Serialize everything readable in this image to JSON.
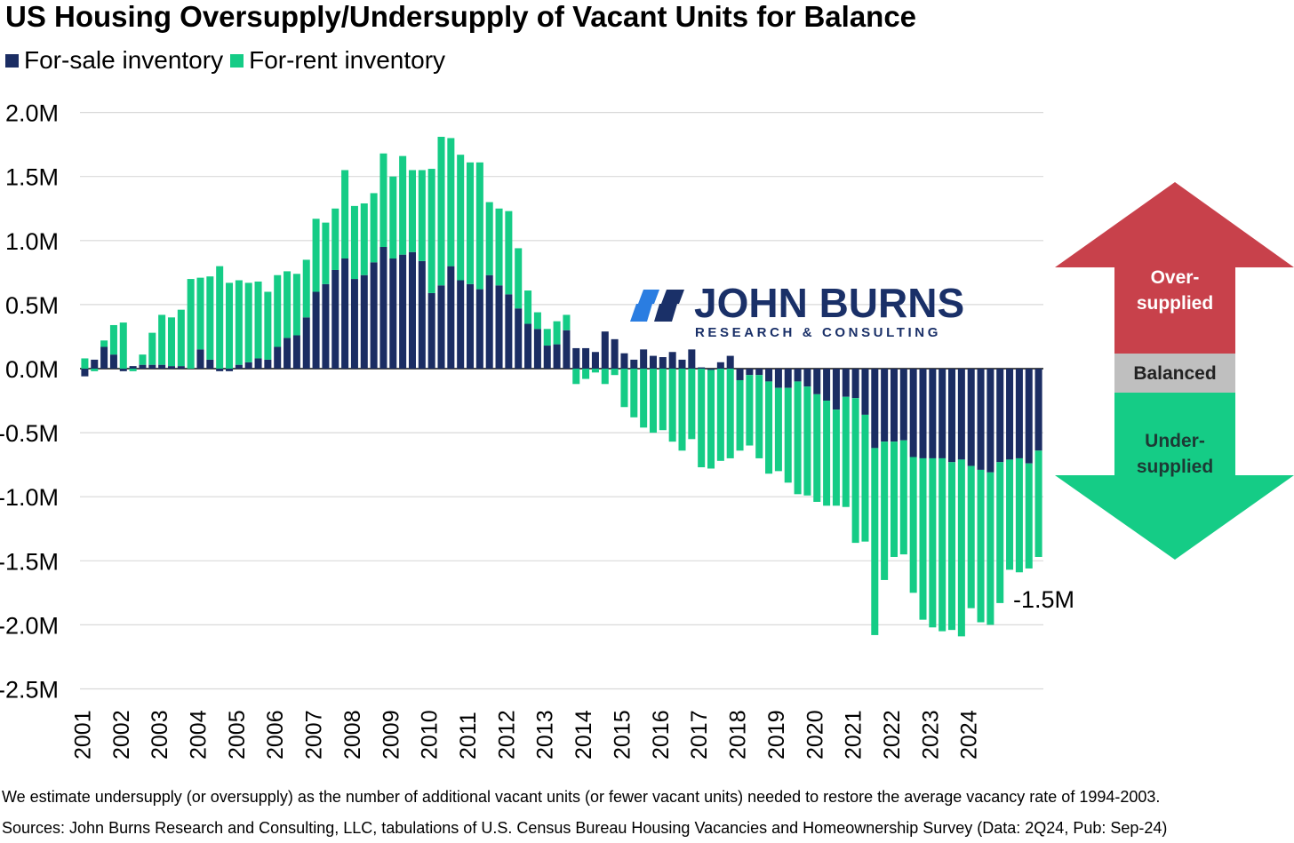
{
  "title": "US Housing Oversupply/Undersupply of Vacant Units for Balance",
  "legend": [
    {
      "label": "For-sale inventory",
      "color": "#1b2d63"
    },
    {
      "label": "For-rent inventory",
      "color": "#15cc86"
    }
  ],
  "logo": {
    "name": "JOHN BURNS",
    "subtitle": "RESEARCH & CONSULTING",
    "icon": "john-burns-logo-icon"
  },
  "balance_indicator": {
    "oversupplied": "Over-\nsupplied",
    "balanced": "Balanced",
    "undersupplied": "Under-\nsupplied",
    "colors": {
      "over": "#c8414b",
      "balanced": "#bfbfbf",
      "under": "#15cc86"
    }
  },
  "footnote": "We estimate undersupply (or oversupply) as the number of additional vacant units (or fewer vacant units) needed to restore the average vacancy rate of 1994-2003.",
  "source": "Sources: John Burns Research and Consulting, LLC, tabulations of U.S. Census Bureau Housing Vacancies and Homeownership Survey (Data: 2Q24, Pub: Sep-24)",
  "chart_data": {
    "type": "bar",
    "stacked": true,
    "frequency": "quarterly",
    "title": "US Housing Oversupply/Undersupply of Vacant Units for Balance",
    "xlabel": "",
    "ylabel": "",
    "y_unit": "M units",
    "ylim": [
      -2.5,
      2.0
    ],
    "y_ticks": [
      2.0,
      1.5,
      1.0,
      0.5,
      0.0,
      -0.5,
      -1.0,
      -1.5,
      -2.0,
      -2.5
    ],
    "y_tick_labels": [
      "2.0M",
      "1.5M",
      "1.0M",
      "0.5M",
      "0.0M",
      "-0.5M",
      "-1.0M",
      "-1.5M",
      "-2.0M",
      "-2.5M"
    ],
    "x_tick_labels": [
      "2001",
      "2002",
      "2003",
      "2004",
      "2005",
      "2006",
      "2007",
      "2008",
      "2009",
      "2010",
      "2011",
      "2012",
      "2013",
      "2014",
      "2015",
      "2016",
      "2017",
      "2018",
      "2019",
      "2020",
      "2021",
      "2022",
      "2023",
      "2024"
    ],
    "grid": true,
    "legend_position": "top-left",
    "annotations": [
      {
        "text": "-1.5M",
        "x": "2024 Q2"
      }
    ],
    "series": [
      {
        "name": "For-sale inventory",
        "color": "#1b2d63",
        "values": [
          -0.06,
          0.07,
          0.17,
          0.11,
          -0.02,
          0.02,
          0.03,
          0.03,
          0.03,
          0.02,
          0.02,
          0.0,
          0.15,
          0.07,
          -0.02,
          -0.02,
          0.03,
          0.05,
          0.08,
          0.07,
          0.17,
          0.24,
          0.26,
          0.4,
          0.6,
          0.66,
          0.77,
          0.86,
          0.7,
          0.73,
          0.83,
          0.95,
          0.86,
          0.89,
          0.91,
          0.84,
          0.59,
          0.65,
          0.8,
          0.69,
          0.66,
          0.62,
          0.73,
          0.65,
          0.58,
          0.47,
          0.35,
          0.31,
          0.18,
          0.19,
          0.3,
          0.16,
          0.16,
          0.13,
          0.29,
          0.23,
          0.12,
          0.07,
          0.15,
          0.1,
          0.09,
          0.13,
          0.07,
          0.15,
          0.01,
          -0.01,
          0.05,
          0.1,
          -0.09,
          -0.05,
          -0.05,
          -0.1,
          -0.15,
          -0.15,
          -0.1,
          -0.14,
          -0.2,
          -0.25,
          -0.32,
          -0.22,
          -0.23,
          -0.36,
          -0.62,
          -0.57,
          -0.57,
          -0.56,
          -0.69,
          -0.7,
          -0.7,
          -0.7,
          -0.73,
          -0.71,
          -0.76,
          -0.79,
          -0.81,
          -0.73,
          -0.71,
          -0.7,
          -0.74,
          -0.64
        ]
      },
      {
        "name": "For-rent inventory",
        "color": "#15cc86",
        "values": [
          0.08,
          -0.02,
          0.05,
          0.23,
          0.36,
          -0.02,
          0.08,
          0.25,
          0.39,
          0.38,
          0.44,
          0.7,
          0.56,
          0.65,
          0.8,
          0.67,
          0.66,
          0.62,
          0.6,
          0.53,
          0.56,
          0.52,
          0.48,
          0.45,
          0.57,
          0.48,
          0.48,
          0.69,
          0.57,
          0.56,
          0.54,
          0.73,
          0.64,
          0.77,
          0.64,
          0.71,
          0.97,
          1.16,
          1.0,
          0.98,
          0.95,
          0.99,
          0.57,
          0.6,
          0.65,
          0.47,
          0.26,
          0.13,
          0.13,
          0.18,
          0.12,
          -0.12,
          -0.08,
          -0.03,
          -0.12,
          -0.05,
          -0.3,
          -0.38,
          -0.46,
          -0.5,
          -0.48,
          -0.57,
          -0.64,
          -0.55,
          -0.77,
          -0.77,
          -0.72,
          -0.7,
          -0.55,
          -0.55,
          -0.65,
          -0.72,
          -0.65,
          -0.74,
          -0.88,
          -0.85,
          -0.84,
          -0.82,
          -0.75,
          -0.86,
          -1.13,
          -0.99,
          -1.46,
          -1.08,
          -0.9,
          -0.89,
          -1.06,
          -1.26,
          -1.32,
          -1.35,
          -1.31,
          -1.38,
          -1.11,
          -1.19,
          -1.19,
          -1.1,
          -0.86,
          -0.89,
          -0.82,
          -0.83
        ]
      }
    ],
    "annotation_net_last": -1.47
  }
}
